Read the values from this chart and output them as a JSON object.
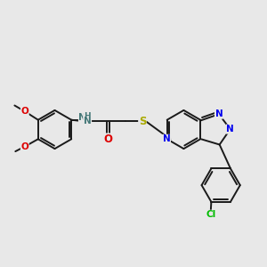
{
  "background_color": "#e8e8e8",
  "bond_color": "#1a1a1a",
  "atom_colors": {
    "N": "#0000ee",
    "O": "#dd0000",
    "S": "#aaaa00",
    "Cl": "#00bb00",
    "H": "#447777",
    "C": "#1a1a1a"
  },
  "lw": 1.4,
  "fontsize": 7.5,
  "r_hex": 0.72,
  "r_pent": 0.62
}
